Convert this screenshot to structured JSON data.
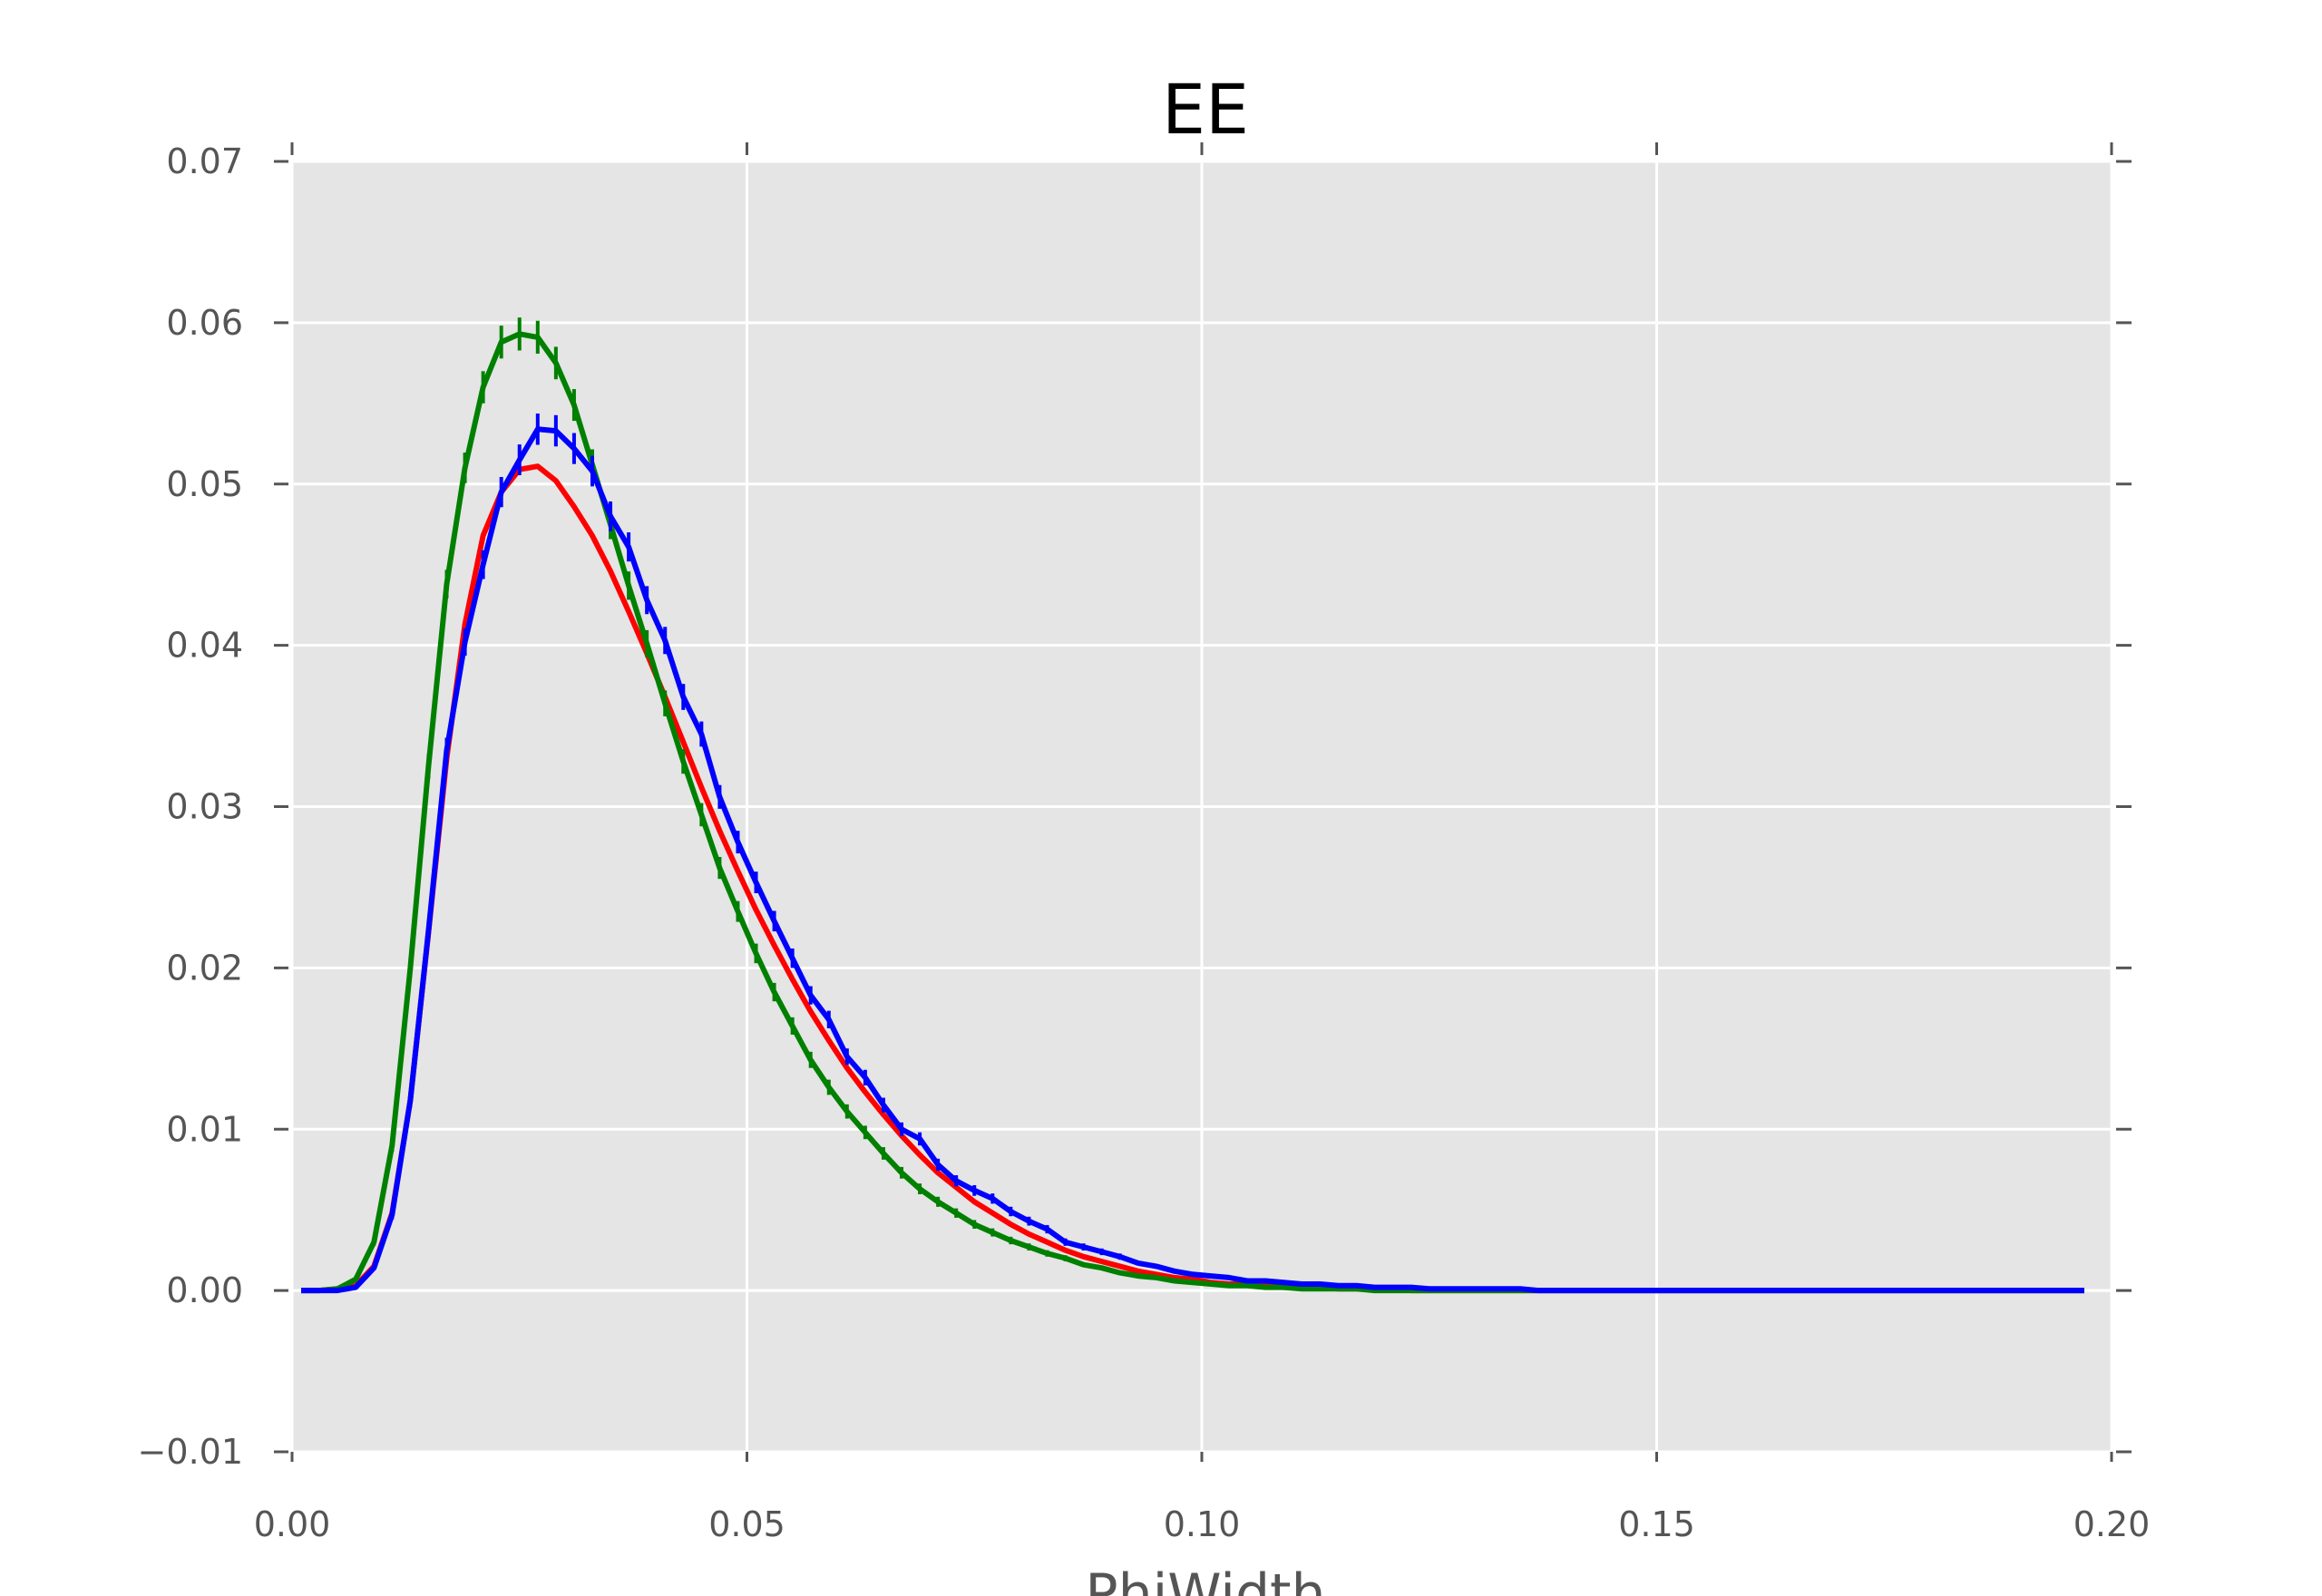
{
  "chart_data": {
    "type": "line",
    "title": "EE",
    "xlabel": "PhiWidth",
    "ylabel": "",
    "xlim": [
      0.0,
      0.2
    ],
    "ylim": [
      -0.01,
      0.07
    ],
    "xticks": [
      "0.00",
      "0.05",
      "0.10",
      "0.15",
      "0.20"
    ],
    "xtick_values": [
      0.0,
      0.05,
      0.1,
      0.15,
      0.2
    ],
    "yticks": [
      "−0.01",
      "0.00",
      "0.01",
      "0.02",
      "0.03",
      "0.04",
      "0.05",
      "0.06",
      "0.07"
    ],
    "ytick_values": [
      -0.01,
      0.0,
      0.01,
      0.02,
      0.03,
      0.04,
      0.05,
      0.06,
      0.07
    ],
    "grid": true,
    "background_color": "#e5e5e5",
    "grid_color": "#ffffff",
    "series": [
      {
        "color": "#ff0000",
        "error_bars": false,
        "x": [
          0.001,
          0.003,
          0.005,
          0.007,
          0.009,
          0.011,
          0.013,
          0.015,
          0.017,
          0.019,
          0.021,
          0.023,
          0.025,
          0.027,
          0.029,
          0.031,
          0.033,
          0.035,
          0.037,
          0.039,
          0.041,
          0.043,
          0.045,
          0.047,
          0.049,
          0.051,
          0.053,
          0.055,
          0.057,
          0.059,
          0.061,
          0.063,
          0.065,
          0.067,
          0.069,
          0.071,
          0.073,
          0.075,
          0.077,
          0.079,
          0.081,
          0.083,
          0.085,
          0.087,
          0.089,
          0.091,
          0.093,
          0.095,
          0.097,
          0.099,
          0.101,
          0.103,
          0.105,
          0.107,
          0.109,
          0.111,
          0.113,
          0.115,
          0.117,
          0.119,
          0.121,
          0.123,
          0.125,
          0.127,
          0.129,
          0.131,
          0.133,
          0.135,
          0.137,
          0.139,
          0.141,
          0.143,
          0.145,
          0.147,
          0.149,
          0.151,
          0.153,
          0.155,
          0.157,
          0.159,
          0.161,
          0.163,
          0.165,
          0.167,
          0.169,
          0.171,
          0.173,
          0.175,
          0.177,
          0.179,
          0.181,
          0.183,
          0.185,
          0.187,
          0.189,
          0.191,
          0.193,
          0.195,
          0.197
        ],
        "y": [
          0.0,
          0.0,
          0.0001,
          0.0003,
          0.0015,
          0.0048,
          0.0118,
          0.0222,
          0.033,
          0.0413,
          0.0468,
          0.0495,
          0.0509,
          0.0511,
          0.0502,
          0.0486,
          0.0468,
          0.0446,
          0.0421,
          0.0395,
          0.0368,
          0.034,
          0.0312,
          0.0285,
          0.026,
          0.0236,
          0.0214,
          0.0193,
          0.0173,
          0.0155,
          0.0138,
          0.0123,
          0.0109,
          0.0096,
          0.0084,
          0.0073,
          0.0064,
          0.0055,
          0.0048,
          0.0041,
          0.0035,
          0.003,
          0.0025,
          0.0021,
          0.0018,
          0.0015,
          0.0012,
          0.001,
          0.0008,
          0.0007,
          0.0005,
          0.0004,
          0.0004,
          0.0003,
          0.0002,
          0.0002,
          0.0002,
          0.0001,
          0.0001,
          0.0001,
          0.0001,
          0.0,
          0.0,
          0.0,
          0.0,
          0.0,
          0.0,
          0.0,
          0.0,
          0.0,
          0.0,
          0.0,
          0.0,
          0.0,
          0.0,
          0.0,
          0.0,
          0.0,
          0.0,
          0.0,
          0.0,
          0.0,
          0.0,
          0.0,
          0.0,
          0.0,
          0.0,
          0.0,
          0.0,
          0.0,
          0.0,
          0.0,
          0.0,
          0.0,
          0.0,
          0.0,
          0.0,
          0.0,
          0.0
        ]
      },
      {
        "color": "#008000",
        "error_bars": true,
        "x": [
          0.001,
          0.003,
          0.005,
          0.007,
          0.009,
          0.011,
          0.013,
          0.015,
          0.017,
          0.019,
          0.021,
          0.023,
          0.025,
          0.027,
          0.029,
          0.031,
          0.033,
          0.035,
          0.037,
          0.039,
          0.041,
          0.043,
          0.045,
          0.047,
          0.049,
          0.051,
          0.053,
          0.055,
          0.057,
          0.059,
          0.061,
          0.063,
          0.065,
          0.067,
          0.069,
          0.071,
          0.073,
          0.075,
          0.077,
          0.079,
          0.081,
          0.083,
          0.085,
          0.087,
          0.089,
          0.091,
          0.093,
          0.095,
          0.097,
          0.099,
          0.101,
          0.103,
          0.105,
          0.107,
          0.109,
          0.111,
          0.113,
          0.115,
          0.117,
          0.119,
          0.121,
          0.123,
          0.125,
          0.127,
          0.129,
          0.131,
          0.133,
          0.135,
          0.137,
          0.139,
          0.141,
          0.143,
          0.145,
          0.147,
          0.149,
          0.151,
          0.153,
          0.155,
          0.157,
          0.159,
          0.161,
          0.163,
          0.165,
          0.167,
          0.169,
          0.171,
          0.173,
          0.175,
          0.177,
          0.179,
          0.181,
          0.183,
          0.185,
          0.187,
          0.189,
          0.191,
          0.193,
          0.195,
          0.197
        ],
        "y": [
          0.0,
          0.0,
          0.0001,
          0.0007,
          0.003,
          0.009,
          0.02,
          0.0325,
          0.0438,
          0.051,
          0.056,
          0.0588,
          0.0593,
          0.0591,
          0.0575,
          0.0549,
          0.0512,
          0.0475,
          0.0437,
          0.0401,
          0.0364,
          0.0328,
          0.0295,
          0.0262,
          0.0235,
          0.0209,
          0.0185,
          0.0164,
          0.0143,
          0.0126,
          0.0111,
          0.0098,
          0.0085,
          0.0073,
          0.0063,
          0.0055,
          0.0048,
          0.0041,
          0.0036,
          0.0031,
          0.0027,
          0.0023,
          0.002,
          0.0016,
          0.0014,
          0.0011,
          0.0009,
          0.0008,
          0.0006,
          0.0005,
          0.0004,
          0.0003,
          0.0003,
          0.0002,
          0.0002,
          0.0001,
          0.0001,
          0.0001,
          0.0001,
          0.0,
          0.0,
          0.0,
          0.0,
          0.0,
          0.0,
          0.0,
          0.0,
          0.0,
          0.0,
          0.0,
          0.0,
          0.0,
          0.0,
          0.0,
          0.0,
          0.0,
          0.0,
          0.0,
          0.0,
          0.0,
          0.0,
          0.0,
          0.0,
          0.0,
          0.0,
          0.0,
          0.0,
          0.0,
          0.0,
          0.0,
          0.0,
          0.0,
          0.0,
          0.0,
          0.0,
          0.0,
          0.0,
          0.0,
          0.0
        ]
      },
      {
        "color": "#0000ff",
        "error_bars": true,
        "x": [
          0.001,
          0.003,
          0.005,
          0.007,
          0.009,
          0.011,
          0.013,
          0.015,
          0.017,
          0.019,
          0.021,
          0.023,
          0.025,
          0.027,
          0.029,
          0.031,
          0.033,
          0.035,
          0.037,
          0.039,
          0.041,
          0.043,
          0.045,
          0.047,
          0.049,
          0.051,
          0.053,
          0.055,
          0.057,
          0.059,
          0.061,
          0.063,
          0.065,
          0.067,
          0.069,
          0.071,
          0.073,
          0.075,
          0.077,
          0.079,
          0.081,
          0.083,
          0.085,
          0.087,
          0.089,
          0.091,
          0.093,
          0.095,
          0.097,
          0.099,
          0.101,
          0.103,
          0.105,
          0.107,
          0.109,
          0.111,
          0.113,
          0.115,
          0.117,
          0.119,
          0.121,
          0.123,
          0.125,
          0.127,
          0.129,
          0.131,
          0.133,
          0.135,
          0.137,
          0.139,
          0.141,
          0.143,
          0.145,
          0.147,
          0.149,
          0.151,
          0.153,
          0.155,
          0.157,
          0.159,
          0.161,
          0.163,
          0.165,
          0.167,
          0.169,
          0.171,
          0.173,
          0.175,
          0.177,
          0.179,
          0.181,
          0.183,
          0.185,
          0.187,
          0.189,
          0.191,
          0.193,
          0.195,
          0.197
        ],
        "y": [
          0.0,
          0.0,
          0.0,
          0.0002,
          0.0014,
          0.0047,
          0.0118,
          0.0223,
          0.0335,
          0.0402,
          0.045,
          0.0495,
          0.0515,
          0.0534,
          0.0533,
          0.0522,
          0.0508,
          0.048,
          0.0461,
          0.0428,
          0.0403,
          0.0368,
          0.0345,
          0.0306,
          0.0278,
          0.0253,
          0.0229,
          0.0206,
          0.0183,
          0.0168,
          0.0145,
          0.0132,
          0.0115,
          0.01,
          0.0094,
          0.0078,
          0.0068,
          0.0062,
          0.0057,
          0.0049,
          0.0043,
          0.0038,
          0.003,
          0.0027,
          0.0024,
          0.0021,
          0.0017,
          0.0015,
          0.0012,
          0.001,
          0.0009,
          0.0008,
          0.0006,
          0.0006,
          0.0005,
          0.0004,
          0.0004,
          0.0003,
          0.0003,
          0.0002,
          0.0002,
          0.0002,
          0.0001,
          0.0001,
          0.0001,
          0.0001,
          0.0001,
          0.0001,
          0.0,
          0.0,
          0.0,
          0.0,
          0.0,
          0.0,
          0.0,
          0.0,
          0.0,
          0.0,
          0.0,
          0.0,
          0.0,
          0.0,
          0.0,
          0.0,
          0.0,
          0.0,
          0.0,
          0.0,
          0.0,
          0.0,
          0.0,
          0.0,
          0.0,
          0.0,
          0.0,
          0.0,
          0.0,
          0.0,
          0.0
        ]
      }
    ]
  }
}
